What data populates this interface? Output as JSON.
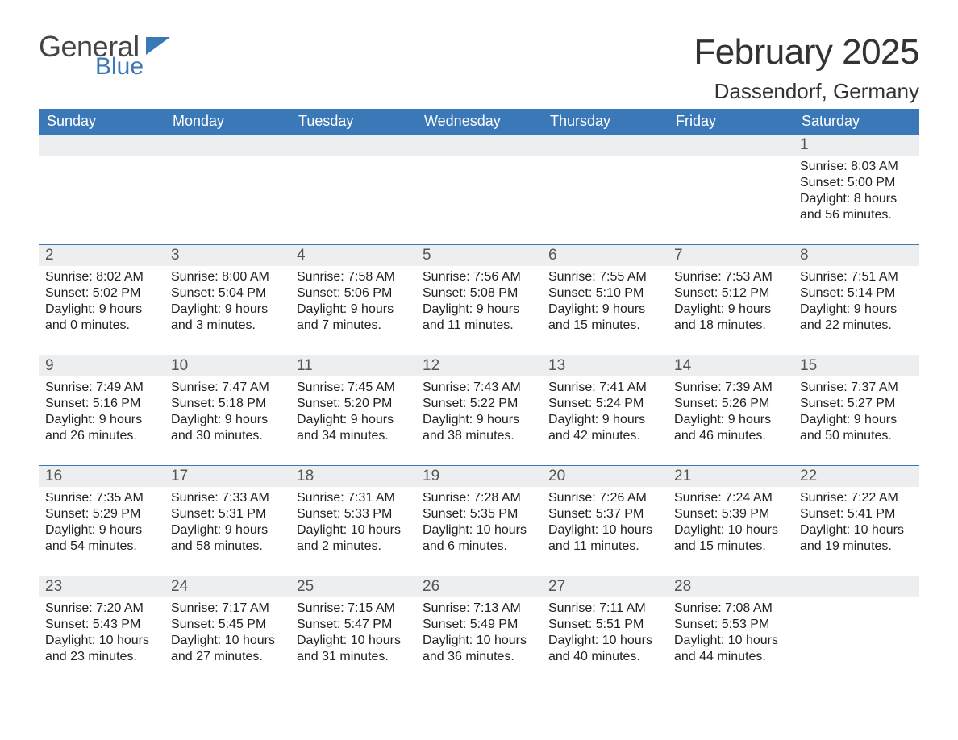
{
  "brand": {
    "word1": "General",
    "word2": "Blue",
    "word1_color": "#444444",
    "word2_color": "#3b78b8",
    "flag_color": "#3b78b8"
  },
  "title": {
    "month_year": "February 2025",
    "location": "Dassendorf, Germany"
  },
  "calendar": {
    "type": "month-calendar",
    "header_bg_color": "#3b78b8",
    "header_text_color": "#ffffff",
    "daynum_bg_color": "#eceef0",
    "divider_color": "#3b78b8",
    "text_color": "#222222",
    "columns": 7,
    "day_names": [
      "Sunday",
      "Monday",
      "Tuesday",
      "Wednesday",
      "Thursday",
      "Friday",
      "Saturday"
    ],
    "weeks": [
      {
        "days": [
          {
            "num": "",
            "lines": [
              "",
              "",
              "",
              ""
            ]
          },
          {
            "num": "",
            "lines": [
              "",
              "",
              "",
              ""
            ]
          },
          {
            "num": "",
            "lines": [
              "",
              "",
              "",
              ""
            ]
          },
          {
            "num": "",
            "lines": [
              "",
              "",
              "",
              ""
            ]
          },
          {
            "num": "",
            "lines": [
              "",
              "",
              "",
              ""
            ]
          },
          {
            "num": "",
            "lines": [
              "",
              "",
              "",
              ""
            ]
          },
          {
            "num": "1",
            "lines": [
              "Sunrise: 8:03 AM",
              "Sunset: 5:00 PM",
              "Daylight: 8 hours",
              "and 56 minutes."
            ]
          }
        ]
      },
      {
        "days": [
          {
            "num": "2",
            "lines": [
              "Sunrise: 8:02 AM",
              "Sunset: 5:02 PM",
              "Daylight: 9 hours",
              "and 0 minutes."
            ]
          },
          {
            "num": "3",
            "lines": [
              "Sunrise: 8:00 AM",
              "Sunset: 5:04 PM",
              "Daylight: 9 hours",
              "and 3 minutes."
            ]
          },
          {
            "num": "4",
            "lines": [
              "Sunrise: 7:58 AM",
              "Sunset: 5:06 PM",
              "Daylight: 9 hours",
              "and 7 minutes."
            ]
          },
          {
            "num": "5",
            "lines": [
              "Sunrise: 7:56 AM",
              "Sunset: 5:08 PM",
              "Daylight: 9 hours",
              "and 11 minutes."
            ]
          },
          {
            "num": "6",
            "lines": [
              "Sunrise: 7:55 AM",
              "Sunset: 5:10 PM",
              "Daylight: 9 hours",
              "and 15 minutes."
            ]
          },
          {
            "num": "7",
            "lines": [
              "Sunrise: 7:53 AM",
              "Sunset: 5:12 PM",
              "Daylight: 9 hours",
              "and 18 minutes."
            ]
          },
          {
            "num": "8",
            "lines": [
              "Sunrise: 7:51 AM",
              "Sunset: 5:14 PM",
              "Daylight: 9 hours",
              "and 22 minutes."
            ]
          }
        ]
      },
      {
        "days": [
          {
            "num": "9",
            "lines": [
              "Sunrise: 7:49 AM",
              "Sunset: 5:16 PM",
              "Daylight: 9 hours",
              "and 26 minutes."
            ]
          },
          {
            "num": "10",
            "lines": [
              "Sunrise: 7:47 AM",
              "Sunset: 5:18 PM",
              "Daylight: 9 hours",
              "and 30 minutes."
            ]
          },
          {
            "num": "11",
            "lines": [
              "Sunrise: 7:45 AM",
              "Sunset: 5:20 PM",
              "Daylight: 9 hours",
              "and 34 minutes."
            ]
          },
          {
            "num": "12",
            "lines": [
              "Sunrise: 7:43 AM",
              "Sunset: 5:22 PM",
              "Daylight: 9 hours",
              "and 38 minutes."
            ]
          },
          {
            "num": "13",
            "lines": [
              "Sunrise: 7:41 AM",
              "Sunset: 5:24 PM",
              "Daylight: 9 hours",
              "and 42 minutes."
            ]
          },
          {
            "num": "14",
            "lines": [
              "Sunrise: 7:39 AM",
              "Sunset: 5:26 PM",
              "Daylight: 9 hours",
              "and 46 minutes."
            ]
          },
          {
            "num": "15",
            "lines": [
              "Sunrise: 7:37 AM",
              "Sunset: 5:27 PM",
              "Daylight: 9 hours",
              "and 50 minutes."
            ]
          }
        ]
      },
      {
        "days": [
          {
            "num": "16",
            "lines": [
              "Sunrise: 7:35 AM",
              "Sunset: 5:29 PM",
              "Daylight: 9 hours",
              "and 54 minutes."
            ]
          },
          {
            "num": "17",
            "lines": [
              "Sunrise: 7:33 AM",
              "Sunset: 5:31 PM",
              "Daylight: 9 hours",
              "and 58 minutes."
            ]
          },
          {
            "num": "18",
            "lines": [
              "Sunrise: 7:31 AM",
              "Sunset: 5:33 PM",
              "Daylight: 10 hours",
              "and 2 minutes."
            ]
          },
          {
            "num": "19",
            "lines": [
              "Sunrise: 7:28 AM",
              "Sunset: 5:35 PM",
              "Daylight: 10 hours",
              "and 6 minutes."
            ]
          },
          {
            "num": "20",
            "lines": [
              "Sunrise: 7:26 AM",
              "Sunset: 5:37 PM",
              "Daylight: 10 hours",
              "and 11 minutes."
            ]
          },
          {
            "num": "21",
            "lines": [
              "Sunrise: 7:24 AM",
              "Sunset: 5:39 PM",
              "Daylight: 10 hours",
              "and 15 minutes."
            ]
          },
          {
            "num": "22",
            "lines": [
              "Sunrise: 7:22 AM",
              "Sunset: 5:41 PM",
              "Daylight: 10 hours",
              "and 19 minutes."
            ]
          }
        ]
      },
      {
        "days": [
          {
            "num": "23",
            "lines": [
              "Sunrise: 7:20 AM",
              "Sunset: 5:43 PM",
              "Daylight: 10 hours",
              "and 23 minutes."
            ]
          },
          {
            "num": "24",
            "lines": [
              "Sunrise: 7:17 AM",
              "Sunset: 5:45 PM",
              "Daylight: 10 hours",
              "and 27 minutes."
            ]
          },
          {
            "num": "25",
            "lines": [
              "Sunrise: 7:15 AM",
              "Sunset: 5:47 PM",
              "Daylight: 10 hours",
              "and 31 minutes."
            ]
          },
          {
            "num": "26",
            "lines": [
              "Sunrise: 7:13 AM",
              "Sunset: 5:49 PM",
              "Daylight: 10 hours",
              "and 36 minutes."
            ]
          },
          {
            "num": "27",
            "lines": [
              "Sunrise: 7:11 AM",
              "Sunset: 5:51 PM",
              "Daylight: 10 hours",
              "and 40 minutes."
            ]
          },
          {
            "num": "28",
            "lines": [
              "Sunrise: 7:08 AM",
              "Sunset: 5:53 PM",
              "Daylight: 10 hours",
              "and 44 minutes."
            ]
          },
          {
            "num": "",
            "lines": [
              "",
              "",
              "",
              ""
            ]
          }
        ]
      }
    ]
  }
}
